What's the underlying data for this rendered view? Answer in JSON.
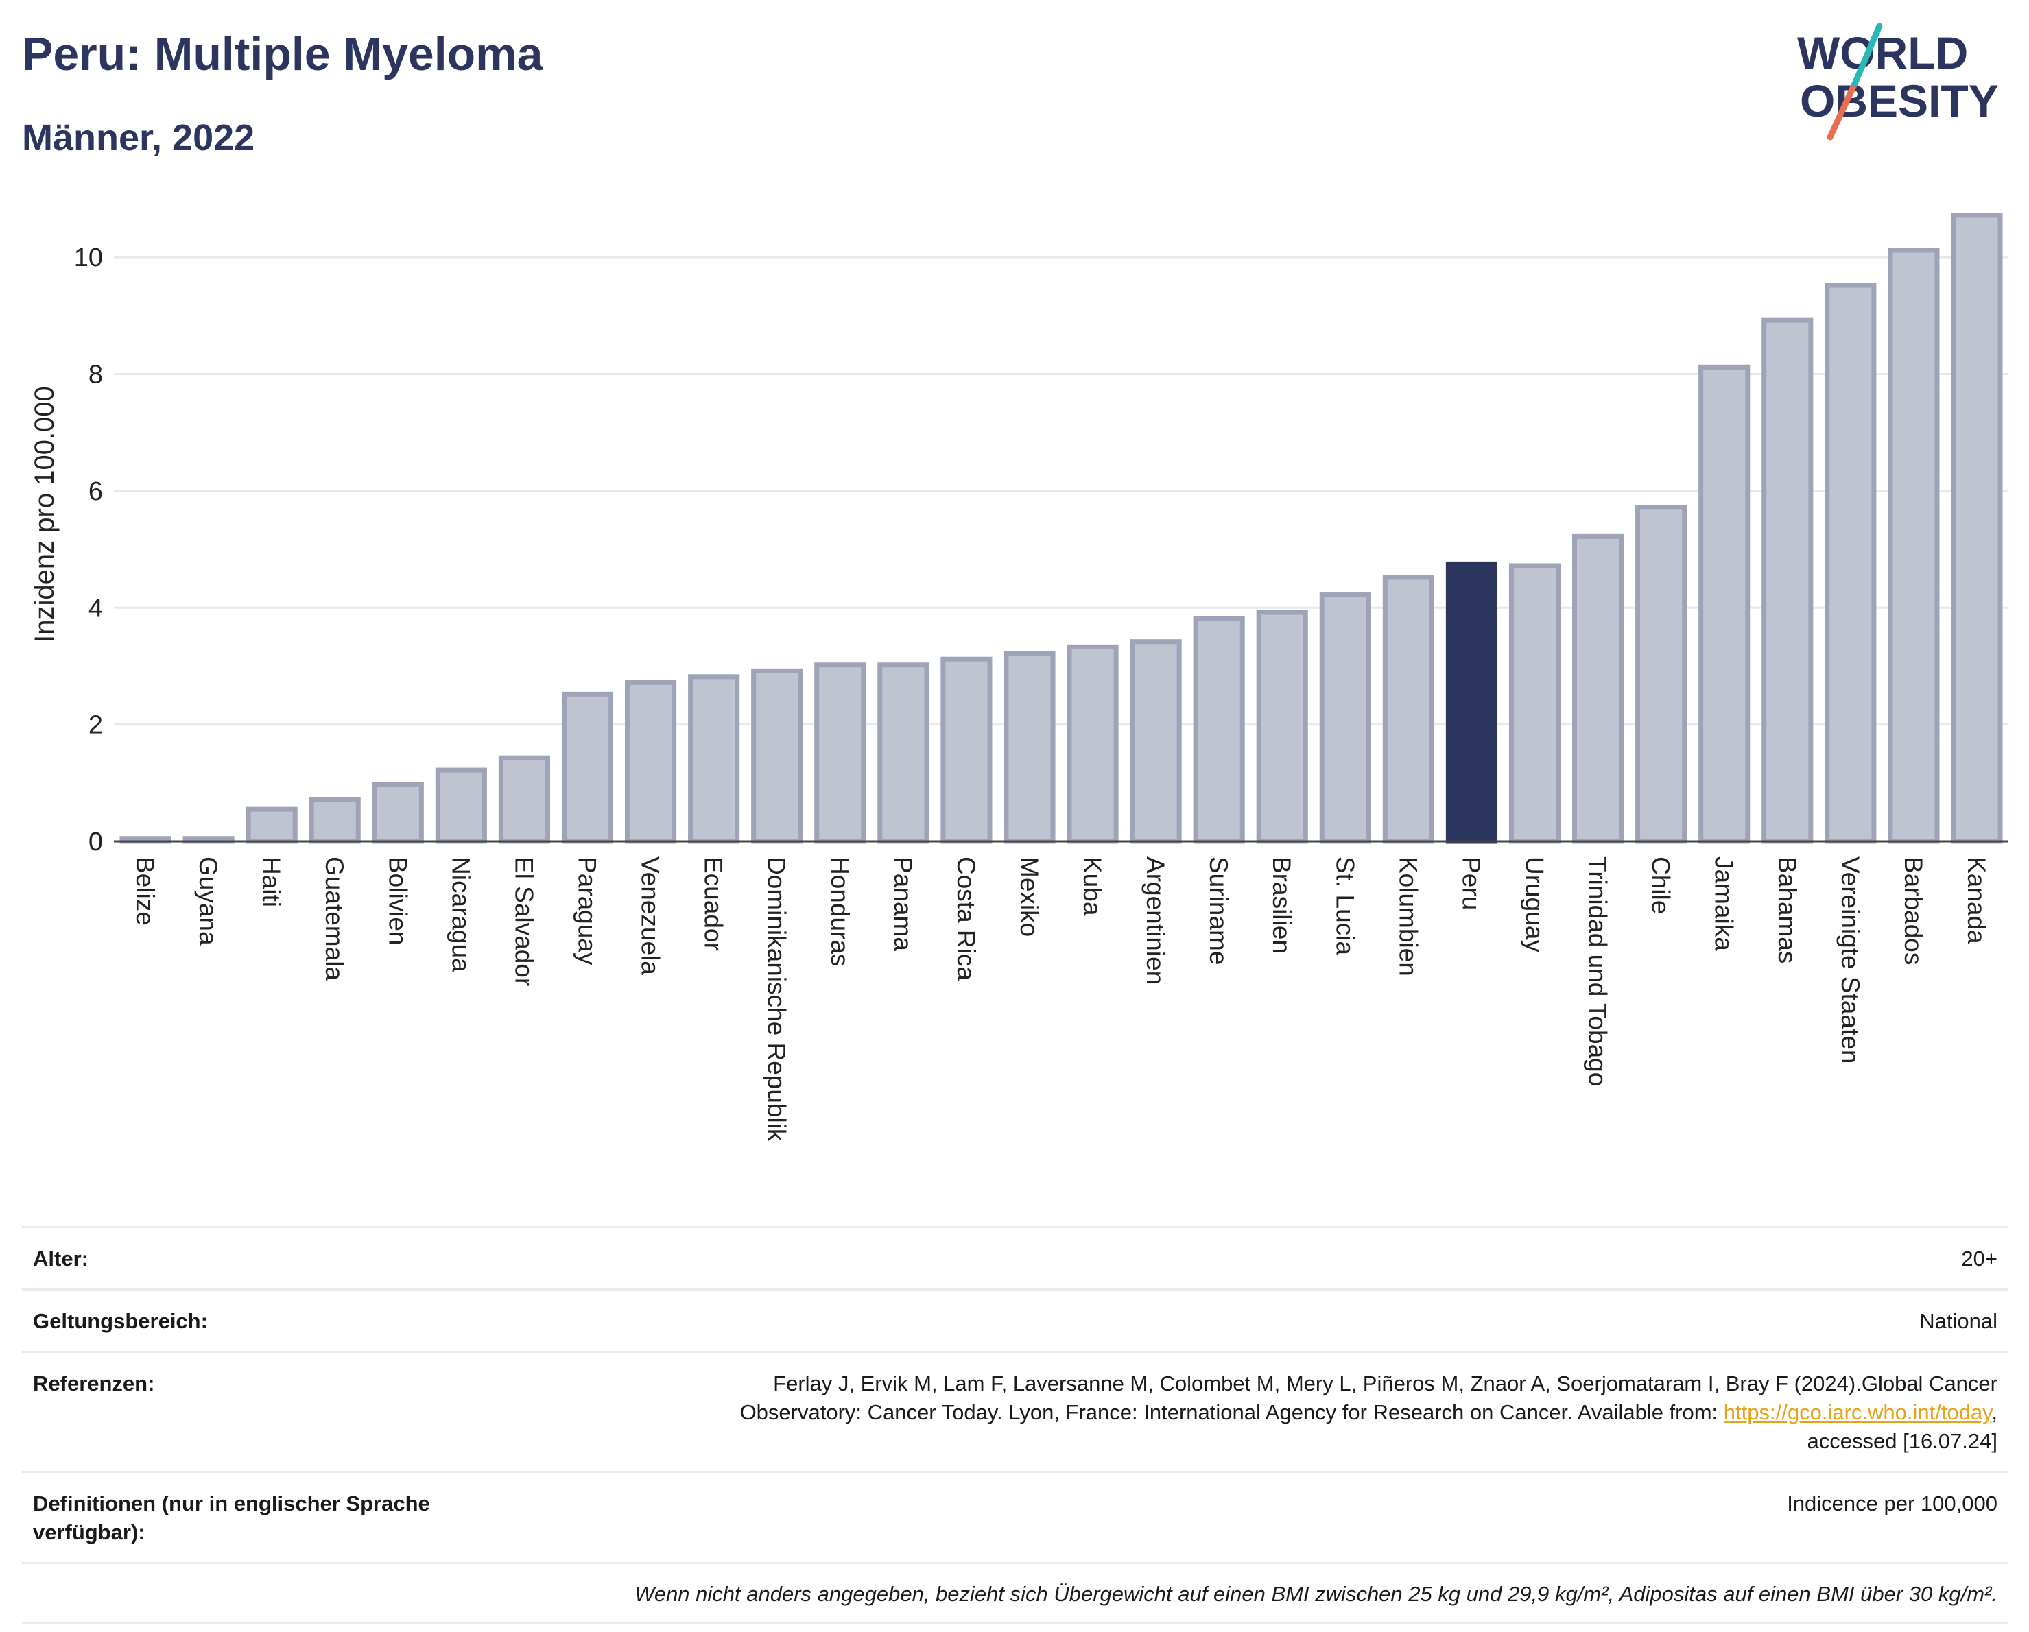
{
  "header": {
    "title": "Peru: Multiple Myeloma",
    "subtitle": "Männer, 2022"
  },
  "logo": {
    "line1": "WORLD",
    "line2": "OBESITY",
    "colors": [
      "#2c355e",
      "#e76f51",
      "#2ab7b7"
    ]
  },
  "chart_data": {
    "type": "bar",
    "ylabel": "Inzidenz pro 100.000",
    "ylim": [
      0,
      11
    ],
    "yticks": [
      0,
      2,
      4,
      6,
      8,
      10
    ],
    "grid": true,
    "highlight": "Peru",
    "colors": {
      "bar": "#c0c3d0",
      "bar_border": "#9fa3b8",
      "highlight": "#2c355e",
      "grid": "#e6e8ef"
    },
    "categories": [
      "Belize",
      "Guyana",
      "Haiti",
      "Guatemala",
      "Bolivien",
      "Nicaragua",
      "El Salvador",
      "Paraguay",
      "Venezuela",
      "Ecuador",
      "Dominikanische Republik",
      "Honduras",
      "Panama",
      "Costa Rica",
      "Mexiko",
      "Kuba",
      "Argentinien",
      "Suriname",
      "Brasilien",
      "St. Lucia",
      "Kolumbien",
      "Peru",
      "Uruguay",
      "Trinidad und Tobago",
      "Chile",
      "Jamaika",
      "Bahamas",
      "Vereinigte Staaten",
      "Barbados",
      "Kanada"
    ],
    "values": [
      0.05,
      0.05,
      0.55,
      0.72,
      0.98,
      1.22,
      1.43,
      2.52,
      2.72,
      2.82,
      2.92,
      3.02,
      3.02,
      3.12,
      3.22,
      3.33,
      3.42,
      3.82,
      3.92,
      4.22,
      4.52,
      4.75,
      4.72,
      5.22,
      5.72,
      8.12,
      8.92,
      9.52,
      10.12,
      10.72
    ]
  },
  "meta": {
    "age_label": "Alter:",
    "age_value": "20+",
    "scope_label": "Geltungsbereich:",
    "scope_value": "National",
    "refs_label": "Referenzen:",
    "refs_line1": "Ferlay J, Ervik M, Lam F, Laversanne M, Colombet M, Mery L, Piñeros M, Znaor A, Soerjomataram I, Bray F (2024).Global Cancer",
    "refs_line2": "Observatory: Cancer Today. Lyon, France: International Agency for Research on Cancer. Available from: ",
    "refs_link": "https://gco.iarc.who.int/today",
    "refs_line2_end": ",",
    "refs_line3": "accessed [16.07.24]",
    "def_label": "Definitionen (nur in englischer Sprache verfügbar):",
    "def_value": "Indicence per 100,000",
    "footnote": "Wenn nicht anders angegeben, bezieht sich Übergewicht auf einen BMI zwischen 25 kg und 29,9 kg/m², Adipositas auf einen BMI über 30 kg/m²."
  }
}
